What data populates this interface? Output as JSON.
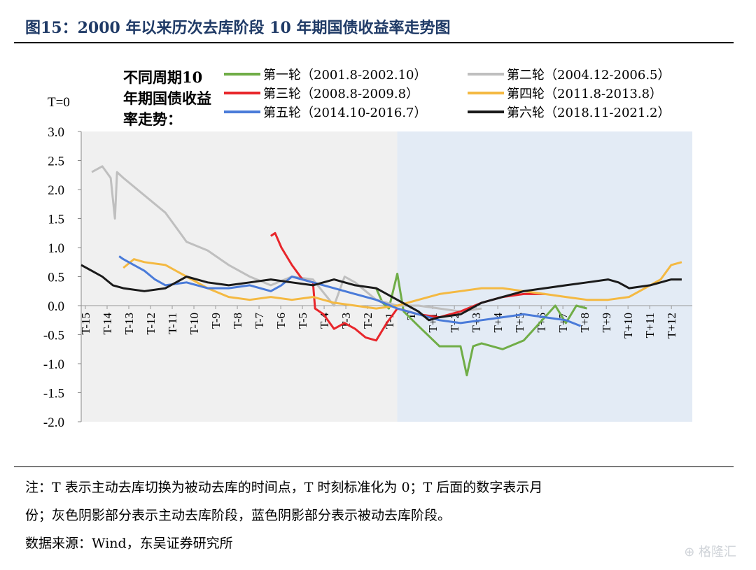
{
  "figure": {
    "title": "图15：2000 年以来历次去库阶段 10 年期国债收益率走势图",
    "legend_group_title": "不同周期10年期国债收益率走势：",
    "note_line1": "注：T 表示主动去库切换为被动去库的时间点，T 时刻标准化为 0；T 后面的数字表示月",
    "note_line2": "份；灰色阴影部分表示主动去库阶段，蓝色阴影部分表示被动去库阶段。",
    "source": "数据来源：Wind，东吴证券研究所",
    "watermark": "格隆汇"
  },
  "chart_data": {
    "type": "line",
    "title": "",
    "xlabel": "",
    "ylabel": "T=0",
    "ylim": [
      -2.0,
      3.0
    ],
    "yticks": [
      "3.0",
      "2.5",
      "2.0",
      "1.5",
      "1.0",
      "0.5",
      "0.0",
      "-0.5",
      "-1.0",
      "-1.5",
      "-2.0"
    ],
    "xlim": [
      -15,
      14
    ],
    "xticks": [
      "T-15",
      "T-14",
      "T-13",
      "T-12",
      "T-11",
      "T-10",
      "T-9",
      "T-8",
      "T-7",
      "T-6",
      "T-5",
      "T-4",
      "T-3",
      "T-2",
      "T-1",
      "T",
      "T+1",
      "T+2",
      "T+3",
      "T+4",
      "T+5",
      "T+6",
      "T+7",
      "T+8",
      "T+9",
      "T+10",
      "T+11",
      "T+12"
    ],
    "shading": [
      {
        "label": "主动去库阶段",
        "from": -15,
        "to": 0,
        "color": "#f0f0f0"
      },
      {
        "label": "被动去库阶段",
        "from": 0,
        "to": 14,
        "color": "#e3ebf5"
      }
    ],
    "legend_placement": "top",
    "series": [
      {
        "name": "第一轮（2001.8-2002.10）",
        "color": "#70ad47",
        "x": [
          -1,
          -0.7,
          -0.4,
          0,
          0.3,
          1,
          2,
          3,
          3.3,
          3.6,
          4,
          5,
          6,
          7,
          7.5,
          8,
          8.5,
          9
        ],
        "y": [
          0.3,
          0.05,
          -0.05,
          0.55,
          -0.1,
          -0.35,
          -0.7,
          -0.7,
          -1.2,
          -0.7,
          -0.65,
          -0.75,
          -0.6,
          -0.2,
          0.0,
          -0.3,
          0.0,
          -0.05
        ]
      },
      {
        "name": "第二轮（2004.12-2006.5）",
        "color": "#bfbfbf",
        "x": [
          -14.5,
          -14,
          -13.6,
          -13.4,
          -13.3,
          -13,
          -12,
          -11,
          -10,
          -9,
          -8,
          -7,
          -6,
          -5,
          -4,
          -3,
          -2.5,
          -2,
          -1,
          0,
          1,
          2,
          3,
          4
        ],
        "y": [
          2.3,
          2.4,
          2.2,
          1.5,
          2.3,
          2.2,
          1.9,
          1.6,
          1.1,
          0.95,
          0.7,
          0.5,
          0.35,
          0.5,
          0.45,
          0.0,
          0.5,
          0.4,
          0.1,
          0.0,
          0.0,
          -0.05,
          -0.1,
          -0.05
        ]
      },
      {
        "name": "第三轮（2008.8-2009.8）",
        "color": "#e8262b",
        "x": [
          -6,
          -5.8,
          -5.5,
          -5,
          -4.5,
          -4,
          -3.9,
          -3.5,
          -3,
          -2.5,
          -2,
          -1.5,
          -1,
          -0.5,
          0,
          1,
          2,
          3,
          4,
          5,
          6,
          7
        ],
        "y": [
          1.2,
          1.25,
          1.0,
          0.7,
          0.45,
          0.4,
          -0.05,
          -0.15,
          -0.4,
          -0.3,
          -0.4,
          -0.55,
          -0.6,
          -0.3,
          -0.05,
          -0.15,
          -0.2,
          -0.1,
          0.05,
          0.15,
          0.2,
          0.2
        ]
      },
      {
        "name": "第四轮（2011.8-2013.8）",
        "color": "#f4b942",
        "x": [
          -13,
          -12.5,
          -12,
          -11,
          -10,
          -9,
          -8,
          -7,
          -6,
          -5,
          -4,
          -3,
          -2,
          -1,
          0,
          1,
          2,
          3,
          4,
          5,
          6,
          7,
          8,
          9,
          10,
          11,
          11.5,
          12,
          12.5,
          13,
          13.5
        ],
        "y": [
          0.65,
          0.8,
          0.75,
          0.7,
          0.5,
          0.3,
          0.15,
          0.1,
          0.15,
          0.1,
          0.15,
          0.05,
          0.0,
          -0.05,
          0.0,
          0.1,
          0.2,
          0.25,
          0.3,
          0.3,
          0.25,
          0.2,
          0.15,
          0.1,
          0.1,
          0.15,
          0.25,
          0.35,
          0.45,
          0.7,
          0.75
        ]
      },
      {
        "name": "第五轮（2014.10-2016.7）",
        "color": "#4a7bd9",
        "x": [
          -13.2,
          -13,
          -12.5,
          -12,
          -11.5,
          -11,
          -10,
          -9,
          -8,
          -7,
          -6,
          -5.5,
          -5,
          -4,
          -3,
          -2,
          -1,
          0,
          1,
          2,
          3,
          4,
          5,
          6,
          7,
          8,
          8.7
        ],
        "y": [
          0.85,
          0.8,
          0.7,
          0.6,
          0.45,
          0.35,
          0.4,
          0.3,
          0.3,
          0.35,
          0.25,
          0.35,
          0.5,
          0.4,
          0.3,
          0.2,
          0.1,
          -0.05,
          -0.15,
          -0.25,
          -0.3,
          -0.25,
          -0.2,
          -0.15,
          -0.2,
          -0.25,
          -0.35
        ]
      },
      {
        "name": "第六轮（2018.11-2021.2）",
        "color": "#1a1a1a",
        "x": [
          -15,
          -14.5,
          -14,
          -13.5,
          -13,
          -12,
          -11,
          -10,
          -9,
          -8,
          -7,
          -6,
          -5,
          -4,
          -3,
          -2,
          -1,
          0,
          1,
          1.5,
          2,
          3,
          4,
          5,
          6,
          7,
          8,
          9,
          10,
          10.5,
          11,
          12,
          13,
          13.5
        ],
        "y": [
          0.7,
          0.6,
          0.5,
          0.35,
          0.3,
          0.25,
          0.3,
          0.5,
          0.4,
          0.35,
          0.4,
          0.45,
          0.4,
          0.35,
          0.45,
          0.35,
          0.3,
          0.1,
          -0.1,
          -0.25,
          -0.2,
          -0.15,
          0.05,
          0.15,
          0.25,
          0.3,
          0.35,
          0.4,
          0.45,
          0.4,
          0.3,
          0.35,
          0.45,
          0.45
        ]
      }
    ]
  }
}
